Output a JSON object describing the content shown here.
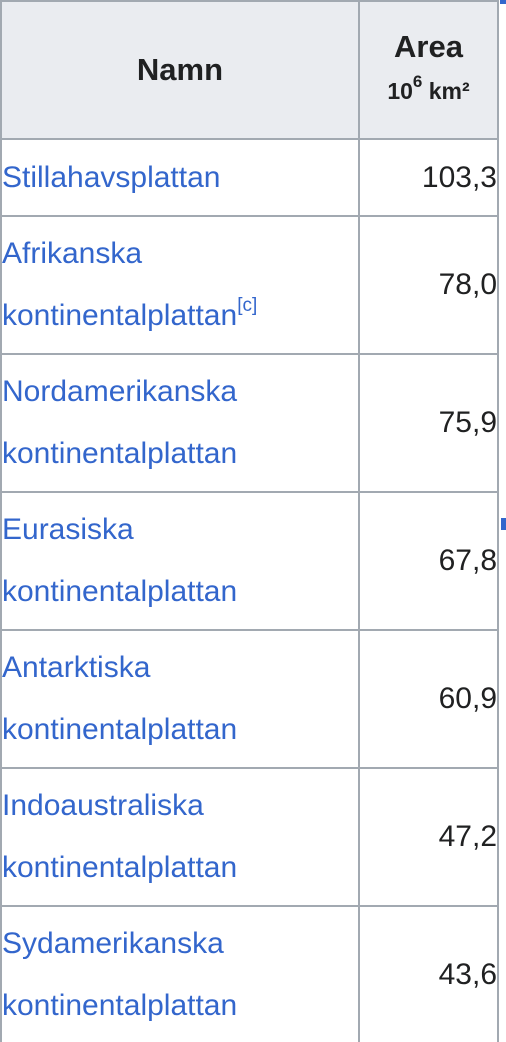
{
  "table": {
    "header": {
      "name": "Namn",
      "area_title": "Area",
      "area_unit_base": "10",
      "area_unit_exp": "6",
      "area_unit_suffix": " km²"
    },
    "rows": [
      {
        "name_line1": "Stillahavsplattan",
        "name_line2": "",
        "ref": "",
        "area": "103,3"
      },
      {
        "name_line1": "Afrikanska",
        "name_line2": "kontinentalplattan",
        "ref": "[c]",
        "area": "78,0"
      },
      {
        "name_line1": "Nordamerikanska",
        "name_line2": "kontinentalplattan",
        "ref": "",
        "area": "75,9"
      },
      {
        "name_line1": "Eurasiska",
        "name_line2": "kontinentalplattan",
        "ref": "",
        "area": "67,8"
      },
      {
        "name_line1": "Antarktiska",
        "name_line2": "kontinentalplattan",
        "ref": "",
        "area": "60,9"
      },
      {
        "name_line1": "Indoaustraliska",
        "name_line2": "kontinentalplattan",
        "ref": "",
        "area": "47,2"
      },
      {
        "name_line1": "Sydamerikanska",
        "name_line2": "kontinentalplattan",
        "ref": "",
        "area": "43,6"
      }
    ]
  },
  "colors": {
    "link": "#3366cc",
    "header_bg": "#eaecf0",
    "border": "#a2a9b1",
    "text": "#202122"
  }
}
